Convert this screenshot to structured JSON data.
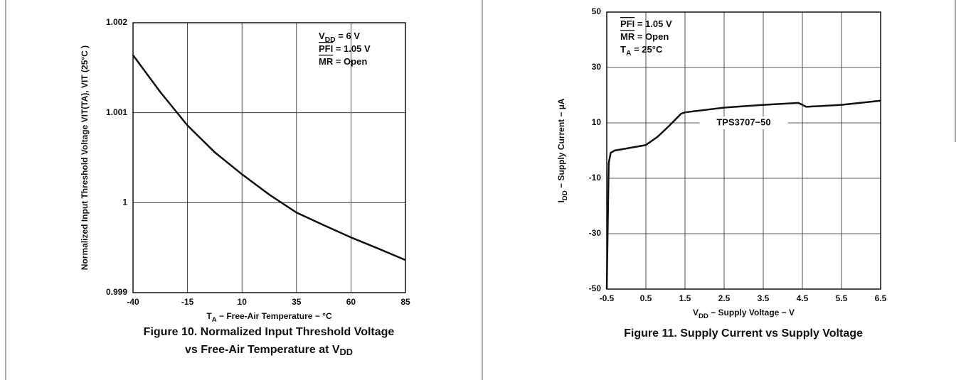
{
  "chart_data": [
    {
      "type": "line",
      "annotations": [
        [
          {
            "text": "V"
          },
          {
            "text": "DD",
            "sub": true
          },
          {
            "text": " = 6 V"
          }
        ],
        [
          {
            "text": "PFI",
            "overline": true
          },
          {
            "text": " = 1.05 V"
          }
        ],
        [
          {
            "text": "MR",
            "overline": true
          },
          {
            "text": " = Open"
          }
        ]
      ],
      "xlabel": [
        {
          "text": "T"
        },
        {
          "text": "A",
          "sub": true
        },
        {
          "text": " − Free-Air Temperature − °C"
        }
      ],
      "ylabel": [
        {
          "text": "Normalized Input Threshold Voltage VIT(TA), VIT (25°C )"
        }
      ],
      "caption": [
        [
          {
            "text": "Figure 10. Normalized Input Threshold Voltage"
          }
        ],
        [
          {
            "text": "vs Free-Air Temperature at V"
          },
          {
            "text": "DD",
            "sub": true
          }
        ]
      ],
      "x": [
        -40,
        -27.5,
        -15,
        -2.5,
        10,
        22.5,
        35,
        47.5,
        60,
        72.5,
        85
      ],
      "series": [
        {
          "color": "#111111",
          "values": [
            1.00164,
            1.00123,
            1.000858,
            1.00056,
            1.000315,
            1.00009,
            0.99989,
            0.99975,
            0.999614,
            0.99949,
            0.999362
          ]
        }
      ],
      "xlim": [
        -40,
        85
      ],
      "xticks": [
        -40,
        -15,
        10,
        35,
        60,
        85
      ],
      "ylim": [
        0.999,
        1.002
      ],
      "yticks": [
        0.999,
        1,
        1.001,
        1.002
      ],
      "grid": true
    },
    {
      "type": "line",
      "annotations": [
        [
          {
            "text": "PFI",
            "overline": true
          },
          {
            "text": " = 1.05 V"
          }
        ],
        [
          {
            "text": "MR",
            "overline": true
          },
          {
            "text": " = Open"
          }
        ],
        [
          {
            "text": "T"
          },
          {
            "text": "A",
            "sub": true
          },
          {
            "text": " = 25°C"
          }
        ]
      ],
      "xlabel": [
        {
          "text": "V"
        },
        {
          "text": "DD",
          "sub": true
        },
        {
          "text": " − Supply Voltage − V"
        }
      ],
      "ylabel": [
        {
          "text": "I"
        },
        {
          "text": "DD",
          "sub": true
        },
        {
          "text": " − Supply Current − µA"
        }
      ],
      "caption": [
        [
          {
            "text": "Figure 11. Supply Current vs Supply Voltage"
          }
        ]
      ],
      "x": [
        -0.5,
        -0.45,
        -0.4,
        -0.3,
        0.5,
        0.8,
        1.1,
        1.4,
        1.5,
        2.5,
        3.5,
        4.4,
        4.5,
        4.6,
        5.5,
        6.5
      ],
      "series": [
        {
          "name": "TPS3707−50",
          "color": "#111111",
          "values": [
            -50,
            -4.6,
            -0.8,
            0,
            2,
            5,
            9,
            13.3,
            13.8,
            15.5,
            16.5,
            17.2,
            16.5,
            15.8,
            16.5,
            18
          ]
        }
      ],
      "xlim": [
        -0.5,
        6.5
      ],
      "xticks": [
        -0.5,
        0.5,
        1.5,
        2.5,
        3.5,
        4.5,
        5.5,
        6.5
      ],
      "ylim": [
        -50,
        50
      ],
      "yticks": [
        -50,
        -30,
        -10,
        10,
        30,
        50
      ],
      "grid": true
    }
  ]
}
